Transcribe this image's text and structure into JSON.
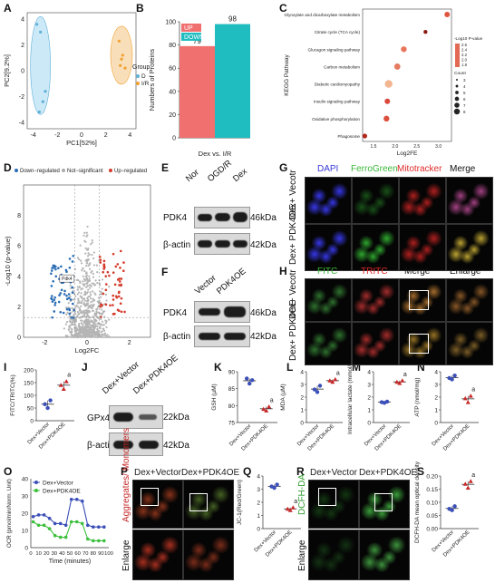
{
  "panel_labels": [
    "A",
    "B",
    "C",
    "D",
    "E",
    "F",
    "G",
    "H",
    "I",
    "J",
    "K",
    "L",
    "M",
    "N",
    "O",
    "P",
    "Q",
    "R",
    "S"
  ],
  "chart_data": [
    {
      "id": "A",
      "type": "scatter",
      "title": "",
      "xlabel": "PC1[52%]",
      "ylabel": "PC2[9.2%]",
      "x_ticks": [
        "-4",
        "-2",
        "0",
        "2",
        "4"
      ],
      "y_ticks": [
        "-4",
        "-2",
        "0",
        "2",
        "4"
      ],
      "legend_title": "Group",
      "legend_placement": "right",
      "series": [
        {
          "name": "D",
          "color": "#5fb0d8",
          "x": [
            -3.7,
            -3.4,
            -3.2,
            -3.5,
            -3.0
          ],
          "y": [
            3.6,
            3.0,
            -2.4,
            -3.2,
            -1.6
          ]
        },
        {
          "name": "I/R",
          "color": "#f0a030",
          "x": [
            3.1,
            3.4,
            3.2,
            3.6,
            3.3
          ],
          "y": [
            2.3,
            1.2,
            0.4,
            0.2,
            0.9
          ]
        }
      ]
    },
    {
      "id": "B",
      "type": "bar",
      "title": "",
      "xlabel": "Dex vs. I/R",
      "ylabel": "Numbers of Proteins",
      "y_ticks": [
        "0",
        "20",
        "40",
        "60",
        "80",
        "100"
      ],
      "ylim": [
        0,
        100
      ],
      "categories": [
        "UP",
        "DOWN"
      ],
      "values": [
        79,
        98
      ],
      "colors": [
        "#f07070",
        "#1fbcc0"
      ],
      "legend_placement": "top-left"
    },
    {
      "id": "C",
      "type": "scatter",
      "title": "",
      "xlabel": "Log2FE",
      "ylabel": "KEGG Pathway",
      "categories": [
        "Glyoxylate and dicarboxylate metabolism",
        "Citrate cycle (TCA cycle)",
        "Glucagon signaling pathway",
        "Carbon metabolism",
        "Diabetic cardiomyopathy",
        "Insulin signaling pathway",
        "Oxidative phosphorylation",
        "Phagosome"
      ],
      "x": [
        3.2,
        2.7,
        2.2,
        2.05,
        1.85,
        1.82,
        1.8,
        1.3
      ],
      "x_ticks": [
        "1.5",
        "2.0",
        "2.5",
        "3.0"
      ],
      "legend_title": "-Log10 P-value",
      "legend_values": [
        "2.6",
        "2.4",
        "2.2",
        "2.0",
        "1.8"
      ],
      "count_title": "Count",
      "count_values": [
        "3",
        "4",
        "5",
        "6",
        "7",
        "8"
      ]
    },
    {
      "id": "D",
      "type": "scatter",
      "title": "",
      "xlabel": "Log2FC",
      "ylabel": "-Log10 (p-value)",
      "legend": [
        "Down−regulated",
        "Not−significant",
        "Up−regulated"
      ],
      "colors": [
        "#2a6db5",
        "#aaaaaa",
        "#d43a2a"
      ],
      "x_ticks": [
        "-2",
        "0",
        "2"
      ],
      "y_ticks": [
        "0",
        "2",
        "4",
        "6",
        "8"
      ],
      "annotation": "Pdk4"
    },
    {
      "id": "I",
      "type": "scatter",
      "title": "",
      "ylabel": "FITC/TRITC(%)",
      "y_ticks": [
        "0",
        "50",
        "100",
        "150",
        "200"
      ],
      "ylim": [
        0,
        200
      ],
      "categories": [
        "Dex+Vector",
        "Dex+PDK4OE"
      ],
      "values": [
        [
          65,
          50,
          80
        ],
        [
          140,
          125,
          155
        ]
      ],
      "mark": "a"
    },
    {
      "id": "K",
      "type": "scatter",
      "title": "",
      "ylabel": "GSH (µM)",
      "y_ticks": [
        "75",
        "80",
        "85",
        "90"
      ],
      "ylim": [
        75,
        90
      ],
      "categories": [
        "Dex+Vector",
        "Dex+PDK4OE"
      ],
      "values": [
        [
          88,
          86.5,
          87.5
        ],
        [
          79,
          78.5,
          79.7
        ]
      ],
      "mark": "a"
    },
    {
      "id": "L",
      "type": "scatter",
      "title": "",
      "ylabel": "MDA (µM)",
      "y_ticks": [
        "0",
        "1",
        "2",
        "3",
        "4"
      ],
      "ylim": [
        0,
        4
      ],
      "categories": [
        "Dex+Vector",
        "Dex+PDK4OE"
      ],
      "values": [
        [
          2.6,
          2.4,
          2.9
        ],
        [
          3.3,
          3.2,
          3.4
        ]
      ],
      "mark": "a"
    },
    {
      "id": "M",
      "type": "scatter",
      "title": "",
      "ylabel": "Intracellular lactate (mmol/L)",
      "y_ticks": [
        "0",
        "1",
        "2",
        "3",
        "4"
      ],
      "ylim": [
        0,
        4
      ],
      "categories": [
        "Dex+Vector",
        "Dex+PDK4OE"
      ],
      "values": [
        [
          1.6,
          1.55,
          1.65
        ],
        [
          3.2,
          3.1,
          3.3
        ]
      ],
      "mark": "a"
    },
    {
      "id": "N",
      "type": "scatter",
      "title": "",
      "ylabel": "ATP (nmol/mg)",
      "y_ticks": [
        "0",
        "1",
        "2",
        "3",
        "4"
      ],
      "ylim": [
        0,
        4
      ],
      "categories": [
        "Dex+Vector",
        "Dex+PDK4OE"
      ],
      "values": [
        [
          3.5,
          3.4,
          3.7
        ],
        [
          1.9,
          1.6,
          2.1
        ]
      ],
      "mark": "a"
    },
    {
      "id": "O",
      "type": "line",
      "title": "",
      "xlabel": "Time (minutes)",
      "ylabel": "OCR (pmol/min/Norm. Unit)",
      "x_ticks": [
        "0",
        "10",
        "20",
        "30",
        "40",
        "50",
        "60",
        "70",
        "80",
        "90",
        "100"
      ],
      "y_ticks": [
        "0",
        "10",
        "20",
        "30",
        "40"
      ],
      "ylim": [
        0,
        40
      ],
      "xlim": [
        0,
        100
      ],
      "series": [
        {
          "name": "Dex+Vector",
          "color": "#3b4fb8",
          "x": [
            3,
            10,
            17,
            24,
            31,
            38,
            45,
            52,
            59,
            66,
            73,
            80,
            87,
            94
          ],
          "y": [
            18,
            19,
            19,
            17,
            14,
            14,
            13,
            28,
            28,
            27,
            13,
            12,
            12,
            12
          ]
        },
        {
          "name": "Dex+PDK4OE",
          "color": "#3cbf3c",
          "x": [
            3,
            10,
            17,
            24,
            31,
            38,
            45,
            52,
            59,
            66,
            73,
            80,
            87,
            94
          ],
          "y": [
            15,
            13,
            13,
            11,
            7,
            6,
            6,
            15,
            15,
            14,
            5,
            4,
            4,
            4
          ]
        }
      ],
      "legend_placement": "top-left"
    },
    {
      "id": "Q",
      "type": "scatter",
      "title": "",
      "ylabel": "JC-1(Red/Green)",
      "y_ticks": [
        "0",
        "1",
        "2",
        "3",
        "4"
      ],
      "ylim": [
        0,
        4
      ],
      "categories": [
        "Dex+Vector",
        "Dex+PDK4OE"
      ],
      "values": [
        [
          3.2,
          3.1,
          3.35
        ],
        [
          1.5,
          1.4,
          1.6
        ]
      ],
      "mark": "a"
    },
    {
      "id": "S",
      "type": "scatter",
      "title": "",
      "ylabel": "DCFH-DA mean optical density",
      "y_ticks": [
        "0.00",
        "0.05",
        "0.10",
        "0.15",
        "0.20"
      ],
      "ylim": [
        0,
        0.2
      ],
      "categories": [
        "Dex+Vector",
        "Dex+PDK4OE"
      ],
      "values": [
        [
          0.075,
          0.07,
          0.085
        ],
        [
          0.17,
          0.155,
          0.18
        ]
      ],
      "mark": "a"
    }
  ],
  "blots": {
    "E": {
      "columns": [
        "Nor",
        "OGD/R",
        "Dex"
      ],
      "rows": [
        "PDK4",
        "β-actin"
      ],
      "mw": [
        "46kDa",
        "42kDa"
      ]
    },
    "F": {
      "columns": [
        "Vector",
        "PDK4OE"
      ],
      "rows": [
        "PDK4",
        "β-actin"
      ],
      "mw": [
        "46kDa",
        "42kDa"
      ]
    },
    "J": {
      "columns": [
        "Dex+Vector",
        "Dex+PDK4OE"
      ],
      "rows": [
        "GPx4",
        "β-actin"
      ],
      "mw": [
        "22kDa",
        "42kDa"
      ]
    }
  },
  "micro": {
    "G": {
      "columns": [
        "DAPI",
        "FerroGreen",
        "Mitotracker",
        "Merge"
      ],
      "column_colors": [
        "#3a3ad8",
        "#3ab83a",
        "#e02a2a",
        "#111111"
      ],
      "rows": [
        "Dex+ Vecotr",
        "Dex+ PDK4OE"
      ]
    },
    "H": {
      "columns": [
        "FITC",
        "TRITC",
        "Merge",
        "Enlarge"
      ],
      "column_colors": [
        "#3ab83a",
        "#e02a2a",
        "#111111",
        "#111111"
      ],
      "rows": [
        "Dex+ Vecotr",
        "Dex+ PDK4OE"
      ]
    },
    "P": {
      "columns": [
        "Dex+Vector",
        "Dex+PDK4OE"
      ],
      "row_label": "Aggregates/ Monomers",
      "enlarge": "Enlarge"
    },
    "R": {
      "columns": [
        "Dex+Vector",
        "Dex+PDK4OE"
      ],
      "row_label": "DCFH-DA",
      "enlarge": "Enlarge"
    }
  }
}
